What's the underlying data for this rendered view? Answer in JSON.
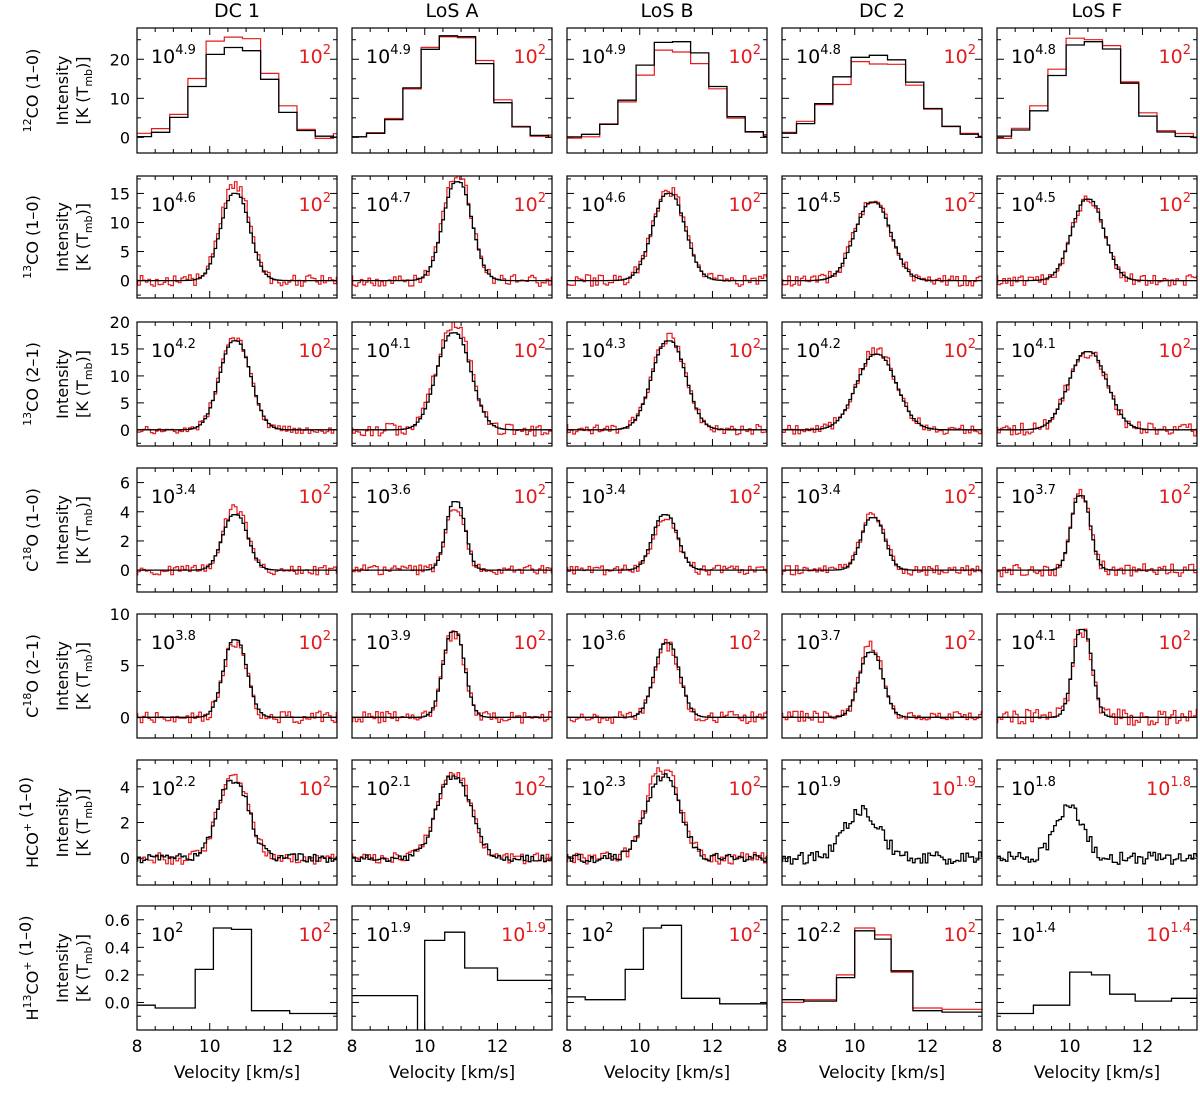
{
  "chart_data": {
    "type": "line",
    "columns": [
      "DC 1",
      "LoS A",
      "LoS B",
      "DC 2",
      "LoS F"
    ],
    "rows": [
      {
        "species_base": "CO",
        "sup": "12",
        "transition": "(1–0)",
        "ytick_labels": [
          "0",
          "10",
          "20"
        ],
        "ylim": [
          -4,
          28
        ]
      },
      {
        "species_base": "CO",
        "sup": "13",
        "transition": "(1–0)",
        "ytick_labels": [
          "0",
          "5",
          "10",
          "15"
        ],
        "ylim": [
          -3,
          18
        ]
      },
      {
        "species_base": "CO",
        "sup": "13",
        "transition": "(2–1)",
        "ytick_labels": [
          "0",
          "5",
          "10",
          "15",
          "20"
        ],
        "ylim": [
          -3,
          20
        ]
      },
      {
        "species_base": "C18O",
        "sup": "",
        "transition": "(1–0)",
        "ytick_labels": [
          "0",
          "2",
          "4",
          "6"
        ],
        "ylim": [
          -1.5,
          7
        ]
      },
      {
        "species_base": "C18O",
        "sup": "",
        "transition": "(2–1)",
        "ytick_labels": [
          "0",
          "5",
          "10"
        ],
        "ylim": [
          -2,
          10
        ]
      },
      {
        "species_base": "HCO+",
        "sup": "",
        "transition": "(1–0)",
        "ytick_labels": [
          "0",
          "2",
          "4"
        ],
        "ylim": [
          -1.5,
          5.5
        ]
      },
      {
        "species_base": "H13CO+",
        "sup": "",
        "transition": "(1–0)",
        "ytick_labels": [
          "0.0",
          "0.2",
          "0.4",
          "0.6"
        ],
        "ylim": [
          -0.2,
          0.7
        ]
      }
    ],
    "ylabel_line1": "Intensity",
    "ylabel_line2": "[K (T",
    "ylabel_sub": "mb",
    "ylabel_close": ")]",
    "xlabel": "Velocity [km/s]",
    "xlim": [
      8,
      13.5
    ],
    "xtick_labels": [
      "8",
      "10",
      "12"
    ],
    "colors": {
      "observed": "#e41a1c",
      "model": "#000000"
    },
    "panels": [
      [
        {
          "black_label": "10",
          "black_exp": "4.9",
          "red_label": "10",
          "red_exp": "2",
          "has_red": true,
          "black": {
            "peak": 23.0,
            "center": 10.7,
            "sigma": 0.75,
            "width": 0.5
          },
          "red": {
            "peak": 26.0,
            "noise": 1.0
          }
        },
        {
          "black_label": "10",
          "black_exp": "4.9",
          "red_label": "10",
          "red_exp": "2",
          "has_red": true,
          "black": {
            "peak": 26.0,
            "center": 10.8,
            "sigma": 0.75,
            "width": 0.5
          },
          "red": {
            "peak": 26.5,
            "noise": 0.8
          }
        },
        {
          "black_label": "10",
          "black_exp": "4.9",
          "red_label": "10",
          "red_exp": "2",
          "has_red": true,
          "black": {
            "peak": 24.5,
            "center": 11.0,
            "sigma": 0.8,
            "width": 0.5
          },
          "red": {
            "peak": 22.0,
            "noise": 1.2
          }
        },
        {
          "black_label": "10",
          "black_exp": "4.8",
          "red_label": "10",
          "red_exp": "2",
          "has_red": true,
          "black": {
            "peak": 21.0,
            "center": 10.6,
            "sigma": 0.9,
            "width": 0.5
          },
          "red": {
            "peak": 19.0,
            "noise": 1.0
          }
        },
        {
          "black_label": "10",
          "black_exp": "4.8",
          "red_label": "10",
          "red_exp": "2",
          "has_red": true,
          "black": {
            "peak": 24.5,
            "center": 10.6,
            "sigma": 0.75,
            "width": 0.5
          },
          "red": {
            "peak": 26.0,
            "noise": 1.2
          }
        }
      ],
      [
        {
          "black_label": "10",
          "black_exp": "4.6",
          "red_label": "10",
          "red_exp": "2",
          "has_red": true,
          "black": {
            "peak": 15.0,
            "center": 10.7,
            "sigma": 0.35,
            "width": 0.1
          },
          "red": {
            "peak": 16.5,
            "noise": 1.0
          }
        },
        {
          "black_label": "10",
          "black_exp": "4.7",
          "red_label": "10",
          "red_exp": "2",
          "has_red": true,
          "black": {
            "peak": 17.0,
            "center": 10.9,
            "sigma": 0.35,
            "width": 0.1
          },
          "red": {
            "peak": 18.0,
            "noise": 1.0
          }
        },
        {
          "black_label": "10",
          "black_exp": "4.6",
          "red_label": "10",
          "red_exp": "2",
          "has_red": true,
          "black": {
            "peak": 15.0,
            "center": 10.8,
            "sigma": 0.4,
            "width": 0.1
          },
          "red": {
            "peak": 15.5,
            "noise": 1.0
          }
        },
        {
          "black_label": "10",
          "black_exp": "4.5",
          "red_label": "10",
          "red_exp": "2",
          "has_red": true,
          "black": {
            "peak": 13.5,
            "center": 10.5,
            "sigma": 0.45,
            "width": 0.1
          },
          "red": {
            "peak": 14.0,
            "noise": 1.0
          }
        },
        {
          "black_label": "10",
          "black_exp": "4.5",
          "red_label": "10",
          "red_exp": "2",
          "has_red": true,
          "black": {
            "peak": 14.0,
            "center": 10.5,
            "sigma": 0.4,
            "width": 0.1
          },
          "red": {
            "peak": 14.0,
            "noise": 1.0
          }
        }
      ],
      [
        {
          "black_label": "10",
          "black_exp": "4.2",
          "red_label": "10",
          "red_exp": "2",
          "has_red": true,
          "black": {
            "peak": 16.5,
            "center": 10.7,
            "sigma": 0.38,
            "width": 0.1
          },
          "red": {
            "peak": 17.0,
            "noise": 0.8
          }
        },
        {
          "black_label": "10",
          "black_exp": "4.1",
          "red_label": "10",
          "red_exp": "2",
          "has_red": true,
          "black": {
            "peak": 18.0,
            "center": 10.8,
            "sigma": 0.42,
            "width": 0.1
          },
          "red": {
            "peak": 19.5,
            "noise": 1.2
          }
        },
        {
          "black_label": "10",
          "black_exp": "4.3",
          "red_label": "10",
          "red_exp": "2",
          "has_red": true,
          "black": {
            "peak": 16.5,
            "center": 10.8,
            "sigma": 0.42,
            "width": 0.1
          },
          "red": {
            "peak": 17.0,
            "noise": 1.0
          }
        },
        {
          "black_label": "10",
          "black_exp": "4.2",
          "red_label": "10",
          "red_exp": "2",
          "has_red": true,
          "black": {
            "peak": 14.0,
            "center": 10.6,
            "sigma": 0.5,
            "width": 0.1
          },
          "red": {
            "peak": 14.5,
            "noise": 1.0
          }
        },
        {
          "black_label": "10",
          "black_exp": "4.1",
          "red_label": "10",
          "red_exp": "2",
          "has_red": true,
          "black": {
            "peak": 14.5,
            "center": 10.5,
            "sigma": 0.48,
            "width": 0.1
          },
          "red": {
            "peak": 14.5,
            "noise": 1.2
          }
        }
      ],
      [
        {
          "black_label": "10",
          "black_exp": "3.4",
          "red_label": "10",
          "red_exp": "2",
          "has_red": true,
          "black": {
            "peak": 3.8,
            "center": 10.7,
            "sigma": 0.3,
            "width": 0.1
          },
          "red": {
            "peak": 4.2,
            "noise": 0.35
          }
        },
        {
          "black_label": "10",
          "black_exp": "3.6",
          "red_label": "10",
          "red_exp": "2",
          "has_red": true,
          "black": {
            "peak": 4.7,
            "center": 10.85,
            "sigma": 0.22,
            "width": 0.1
          },
          "red": {
            "peak": 4.3,
            "noise": 0.35
          }
        },
        {
          "black_label": "10",
          "black_exp": "3.4",
          "red_label": "10",
          "red_exp": "2",
          "has_red": true,
          "black": {
            "peak": 3.8,
            "center": 10.7,
            "sigma": 0.3,
            "width": 0.1
          },
          "red": {
            "peak": 3.5,
            "noise": 0.35
          }
        },
        {
          "black_label": "10",
          "black_exp": "3.4",
          "red_label": "10",
          "red_exp": "2",
          "has_red": true,
          "black": {
            "peak": 3.6,
            "center": 10.5,
            "sigma": 0.28,
            "width": 0.1
          },
          "red": {
            "peak": 3.8,
            "noise": 0.35
          }
        },
        {
          "black_label": "10",
          "black_exp": "3.7",
          "red_label": "10",
          "red_exp": "2",
          "has_red": true,
          "black": {
            "peak": 5.1,
            "center": 10.3,
            "sigma": 0.22,
            "width": 0.1
          },
          "red": {
            "peak": 5.2,
            "noise": 0.45
          }
        }
      ],
      [
        {
          "black_label": "10",
          "black_exp": "3.8",
          "red_label": "10",
          "red_exp": "2",
          "has_red": true,
          "black": {
            "peak": 7.5,
            "center": 10.7,
            "sigma": 0.28,
            "width": 0.1
          },
          "red": {
            "peak": 7.2,
            "noise": 0.6
          }
        },
        {
          "black_label": "10",
          "black_exp": "3.9",
          "red_label": "10",
          "red_exp": "2",
          "has_red": true,
          "black": {
            "peak": 8.3,
            "center": 10.8,
            "sigma": 0.25,
            "width": 0.1
          },
          "red": {
            "peak": 8.0,
            "noise": 0.6
          }
        },
        {
          "black_label": "10",
          "black_exp": "3.6",
          "red_label": "10",
          "red_exp": "2",
          "has_red": true,
          "black": {
            "peak": 7.2,
            "center": 10.75,
            "sigma": 0.3,
            "width": 0.1
          },
          "red": {
            "peak": 7.0,
            "noise": 0.6
          }
        },
        {
          "black_label": "10",
          "black_exp": "3.7",
          "red_label": "10",
          "red_exp": "2",
          "has_red": true,
          "black": {
            "peak": 6.3,
            "center": 10.45,
            "sigma": 0.28,
            "width": 0.1
          },
          "red": {
            "peak": 6.8,
            "noise": 0.6
          }
        },
        {
          "black_label": "10",
          "black_exp": "4.1",
          "red_label": "10",
          "red_exp": "2",
          "has_red": true,
          "black": {
            "peak": 8.5,
            "center": 10.35,
            "sigma": 0.22,
            "width": 0.1
          },
          "red": {
            "peak": 8.5,
            "noise": 0.8
          }
        }
      ],
      [
        {
          "black_label": "10",
          "black_exp": "2.2",
          "red_label": "10",
          "red_exp": "2",
          "has_red": true,
          "black": {
            "peak": 4.4,
            "center": 10.65,
            "sigma": 0.38,
            "width": 0.1,
            "noise": 0.25
          },
          "red": {
            "peak": 4.6,
            "noise": 0.35
          }
        },
        {
          "black_label": "10",
          "black_exp": "2.1",
          "red_label": "10",
          "red_exp": "2",
          "has_red": true,
          "black": {
            "peak": 4.6,
            "center": 10.8,
            "sigma": 0.42,
            "width": 0.1,
            "noise": 0.2
          },
          "red": {
            "peak": 4.8,
            "noise": 0.3
          }
        },
        {
          "black_label": "10",
          "black_exp": "2.3",
          "red_label": "10",
          "red_exp": "2",
          "has_red": true,
          "black": {
            "peak": 4.5,
            "center": 10.65,
            "sigma": 0.42,
            "width": 0.1,
            "noise": 0.25
          },
          "red": {
            "peak": 5.0,
            "noise": 0.35
          }
        },
        {
          "black_label": "10",
          "black_exp": "1.9",
          "red_label": "10",
          "red_exp": "1.9",
          "has_red": false,
          "black": {
            "peak": 2.6,
            "center": 10.2,
            "sigma": 0.45,
            "width": 0.1,
            "noise": 0.35
          }
        },
        {
          "black_label": "10",
          "black_exp": "1.8",
          "red_label": "10",
          "red_exp": "1.8",
          "has_red": false,
          "black": {
            "peak": 2.7,
            "center": 10.0,
            "sigma": 0.35,
            "width": 0.1,
            "noise": 0.35
          }
        }
      ],
      [
        {
          "black_label": "10",
          "black_exp": "2",
          "red_label": "10",
          "red_exp": "2",
          "has_red": false,
          "black": {
            "steps": [
              [
                7.6,
                -0.02
              ],
              [
                8.5,
                -0.04
              ],
              [
                9.6,
                0.24
              ],
              [
                10.1,
                0.54
              ],
              [
                10.6,
                0.53
              ],
              [
                11.15,
                -0.06
              ],
              [
                12.2,
                -0.08
              ],
              [
                13.5,
                -0.07
              ]
            ]
          }
        },
        {
          "black_label": "10",
          "black_exp": "1.9",
          "red_label": "10",
          "red_exp": "1.9",
          "has_red": false,
          "black": {
            "steps": [
              [
                7.6,
                0.05
              ],
              [
                9.8,
                -0.25
              ],
              [
                10.0,
                0.45
              ],
              [
                10.55,
                0.51
              ],
              [
                11.1,
                0.25
              ],
              [
                12.0,
                0.16
              ],
              [
                13.5,
                0.06
              ]
            ]
          }
        },
        {
          "black_label": "10",
          "black_exp": "2",
          "red_label": "10",
          "red_exp": "2",
          "has_red": false,
          "black": {
            "steps": [
              [
                7.6,
                0.04
              ],
              [
                8.5,
                0.02
              ],
              [
                9.6,
                0.24
              ],
              [
                10.1,
                0.54
              ],
              [
                10.6,
                0.56
              ],
              [
                11.15,
                0.03
              ],
              [
                12.2,
                -0.01
              ],
              [
                13.5,
                -0.04
              ]
            ]
          }
        },
        {
          "black_label": "10",
          "black_exp": "2.2",
          "red_label": "10",
          "red_exp": "2",
          "has_red": true,
          "black": {
            "steps": [
              [
                7.6,
                0.02
              ],
              [
                8.6,
                0.01
              ],
              [
                9.5,
                0.18
              ],
              [
                10.0,
                0.52
              ],
              [
                10.55,
                0.46
              ],
              [
                11.0,
                0.23
              ],
              [
                11.6,
                -0.06
              ],
              [
                12.4,
                -0.07
              ],
              [
                13.5,
                -0.07
              ]
            ]
          },
          "red": {
            "steps": [
              [
                7.6,
                0.0
              ],
              [
                8.6,
                0.02
              ],
              [
                9.5,
                0.2
              ],
              [
                10.0,
                0.54
              ],
              [
                10.55,
                0.49
              ],
              [
                11.0,
                0.22
              ],
              [
                11.6,
                -0.04
              ],
              [
                12.4,
                -0.05
              ],
              [
                13.5,
                -0.05
              ]
            ]
          }
        },
        {
          "black_label": "10",
          "black_exp": "1.4",
          "red_label": "10",
          "red_exp": "1.4",
          "has_red": false,
          "black": {
            "steps": [
              [
                7.6,
                -0.08
              ],
              [
                9.0,
                -0.02
              ],
              [
                10.0,
                0.22
              ],
              [
                10.6,
                0.2
              ],
              [
                11.1,
                0.06
              ],
              [
                11.8,
                0.01
              ],
              [
                12.8,
                0.03
              ],
              [
                13.5,
                0.06
              ]
            ]
          }
        }
      ]
    ]
  }
}
